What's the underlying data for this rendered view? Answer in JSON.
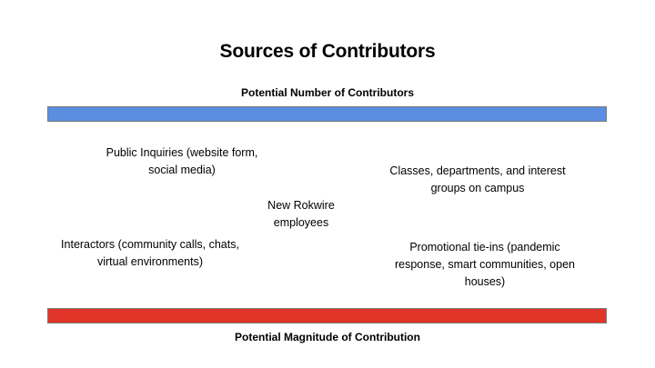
{
  "title": "Sources of Contributors",
  "axes": {
    "top_label": "Potential Number of Contributors",
    "bottom_label": "Potential Magnitude of Contribution"
  },
  "colors": {
    "top_bar": "#5b8ee0",
    "bottom_bar": "#e2352a"
  },
  "items": {
    "public_inquiries": "Public Inquiries (website form, social media)",
    "classes": "Classes, departments, and interest groups on campus",
    "new_rokwire": "New Rokwire employees",
    "interactors": "Interactors (community calls, chats, virtual environments)",
    "promotional": "Promotional tie-ins (pandemic response, smart communities, open houses)"
  }
}
